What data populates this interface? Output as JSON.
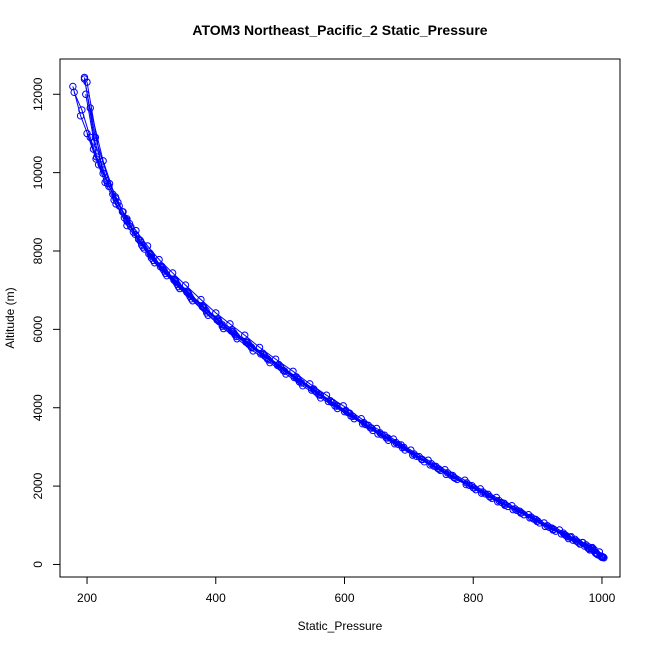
{
  "chart_data": {
    "type": "line",
    "title": "ATOM3 Northeast_Pacific_2 Static_Pressure",
    "xlabel": "Static_Pressure",
    "ylabel": "Altitude (m)",
    "xlim": [
      158,
      1028
    ],
    "ylim": [
      -320,
      12900
    ],
    "xticks": [
      200,
      400,
      600,
      800,
      1000
    ],
    "yticks": [
      0,
      2000,
      4000,
      6000,
      8000,
      10000,
      12000
    ],
    "grid": false,
    "legend": "none",
    "color": "#0000ff",
    "marker": "open-circle",
    "series": [
      {
        "x": [
          1002,
          996,
          985,
          970,
          950,
          925,
          900,
          875,
          850,
          825,
          800,
          770,
          745,
          720,
          690,
          665,
          640,
          610,
          585,
          560,
          530,
          505,
          480,
          455,
          430,
          410,
          385,
          360,
          340,
          320,
          300,
          285,
          262,
          245,
          222,
          200
        ],
        "y": [
          190,
          320,
          430,
          560,
          700,
          900,
          1110,
          1320,
          1520,
          1740,
          1960,
          2220,
          2450,
          2680,
          2980,
          3230,
          3490,
          3790,
          4050,
          4330,
          4660,
          4950,
          5250,
          5550,
          5860,
          6120,
          6480,
          6840,
          7150,
          7490,
          7820,
          8150,
          8650,
          9200,
          10200,
          12310
        ]
      },
      {
        "x": [
          1000,
          988,
          975,
          958,
          940,
          915,
          890,
          865,
          840,
          815,
          790,
          760,
          735,
          708,
          680,
          655,
          630,
          602,
          578,
          552,
          525,
          498,
          473,
          448,
          425,
          403,
          380,
          356,
          336,
          316,
          298,
          282,
          262,
          248,
          232,
          212,
          196
        ],
        "y": [
          200,
          380,
          500,
          640,
          800,
          990,
          1210,
          1420,
          1630,
          1850,
          2080,
          2340,
          2570,
          2820,
          3110,
          3360,
          3620,
          3930,
          4180,
          4480,
          4790,
          5100,
          5390,
          5700,
          5990,
          6270,
          6600,
          6970,
          7280,
          7610,
          7940,
          8280,
          8760,
          9240,
          9720,
          10800,
          12430
        ]
      },
      {
        "x": [
          997,
          984,
          970,
          952,
          934,
          910,
          886,
          860,
          836,
          811,
          787,
          756,
          730,
          703,
          676,
          650,
          626,
          598,
          572,
          546,
          520,
          493,
          468,
          445,
          422,
          400,
          377,
          353,
          333,
          312,
          294,
          276,
          256,
          235,
          213,
          196
        ],
        "y": [
          220,
          410,
          560,
          710,
          880,
          1060,
          1270,
          1500,
          1710,
          1930,
          2150,
          2420,
          2660,
          2920,
          3200,
          3470,
          3720,
          4050,
          4320,
          4610,
          4930,
          5240,
          5540,
          5850,
          6140,
          6420,
          6760,
          7130,
          7440,
          7780,
          8130,
          8520,
          9000,
          9720,
          10900,
          12390
        ]
      },
      {
        "x": [
          1000,
          990,
          978,
          962,
          944,
          922,
          897,
          872,
          848,
          823,
          798,
          768,
          742,
          716,
          688,
          662,
          637,
          608,
          582,
          556,
          528,
          501,
          476,
          451,
          428,
          405,
          382,
          358,
          338,
          318,
          300,
          284,
          268,
          255,
          240,
          225,
          210,
          190,
          178
        ],
        "y": [
          180,
          290,
          420,
          580,
          740,
          930,
          1150,
          1360,
          1560,
          1790,
          2010,
          2270,
          2500,
          2750,
          3050,
          3300,
          3550,
          3860,
          4130,
          4400,
          4720,
          5030,
          5320,
          5620,
          5910,
          6200,
          6540,
          6900,
          7210,
          7540,
          7870,
          8220,
          8620,
          9000,
          9450,
          9980,
          10600,
          11450,
          12200
        ]
      },
      {
        "x": [
          1003,
          993,
          981,
          966,
          948,
          928,
          903,
          879,
          854,
          829,
          804,
          775,
          749,
          724,
          694,
          668,
          644,
          615,
          589,
          563,
          535,
          509,
          484,
          458,
          433,
          412,
          388,
          364,
          344,
          324,
          305,
          289,
          275,
          262,
          245,
          230,
          218,
          205,
          192,
          180
        ],
        "y": [
          170,
          250,
          370,
          520,
          660,
          850,
          1060,
          1270,
          1480,
          1690,
          1910,
          2170,
          2400,
          2620,
          2920,
          3170,
          3420,
          3720,
          3980,
          4250,
          4560,
          4860,
          5150,
          5450,
          5760,
          6020,
          6360,
          6730,
          7040,
          7370,
          7700,
          8050,
          8420,
          8820,
          9330,
          9800,
          10200,
          10900,
          11600,
          12050
        ]
      },
      {
        "x": [
          999,
          987,
          973,
          955,
          937,
          912,
          888,
          862,
          838,
          813,
          789,
          758,
          733,
          706,
          678,
          652,
          628,
          600,
          575,
          549,
          522,
          496,
          470,
          447,
          424,
          402,
          379,
          355,
          335,
          314,
          296,
          280,
          262,
          244,
          225,
          205
        ],
        "y": [
          210,
          350,
          470,
          620,
          780,
          970,
          1190,
          1400,
          1600,
          1820,
          2040,
          2300,
          2540,
          2790,
          3080,
          3330,
          3590,
          3900,
          4160,
          4450,
          4770,
          5080,
          5370,
          5670,
          5960,
          6240,
          6580,
          6950,
          7260,
          7600,
          7930,
          8300,
          8780,
          9380,
          10300,
          11650
        ]
      },
      {
        "x": [
          1001,
          992,
          980,
          964,
          946,
          924,
          899,
          874,
          849,
          826,
          801,
          772,
          747,
          721,
          692,
          667,
          642,
          613,
          588,
          562,
          533,
          507,
          482,
          456,
          432,
          410,
          386,
          362,
          342,
          322,
          303,
          287,
          272,
          258,
          242,
          228,
          214,
          200
        ],
        "y": [
          190,
          270,
          400,
          550,
          710,
          880,
          1100,
          1310,
          1510,
          1720,
          1950,
          2200,
          2430,
          2680,
          2990,
          3230,
          3480,
          3780,
          4040,
          4320,
          4630,
          4930,
          5220,
          5530,
          5820,
          6080,
          6420,
          6780,
          7090,
          7430,
          7760,
          8100,
          8480,
          8850,
          9300,
          9750,
          10350,
          11000
        ]
      },
      {
        "x": [
          1000,
          991,
          979,
          960,
          942,
          918,
          894,
          868,
          844,
          819,
          794,
          765,
          739,
          712,
          684,
          658,
          633,
          605,
          580,
          554,
          527,
          500,
          474,
          449,
          426,
          404,
          381,
          357,
          337,
          317,
          299,
          283,
          266,
          250,
          234,
          215,
          198
        ],
        "y": [
          200,
          300,
          450,
          600,
          760,
          950,
          1160,
          1380,
          1580,
          1800,
          2020,
          2280,
          2510,
          2760,
          3060,
          3310,
          3570,
          3880,
          4140,
          4430,
          4750,
          5060,
          5360,
          5660,
          5940,
          6230,
          6560,
          6930,
          7240,
          7580,
          7910,
          8260,
          8700,
          9150,
          9650,
          10400,
          12000
        ]
      }
    ]
  }
}
